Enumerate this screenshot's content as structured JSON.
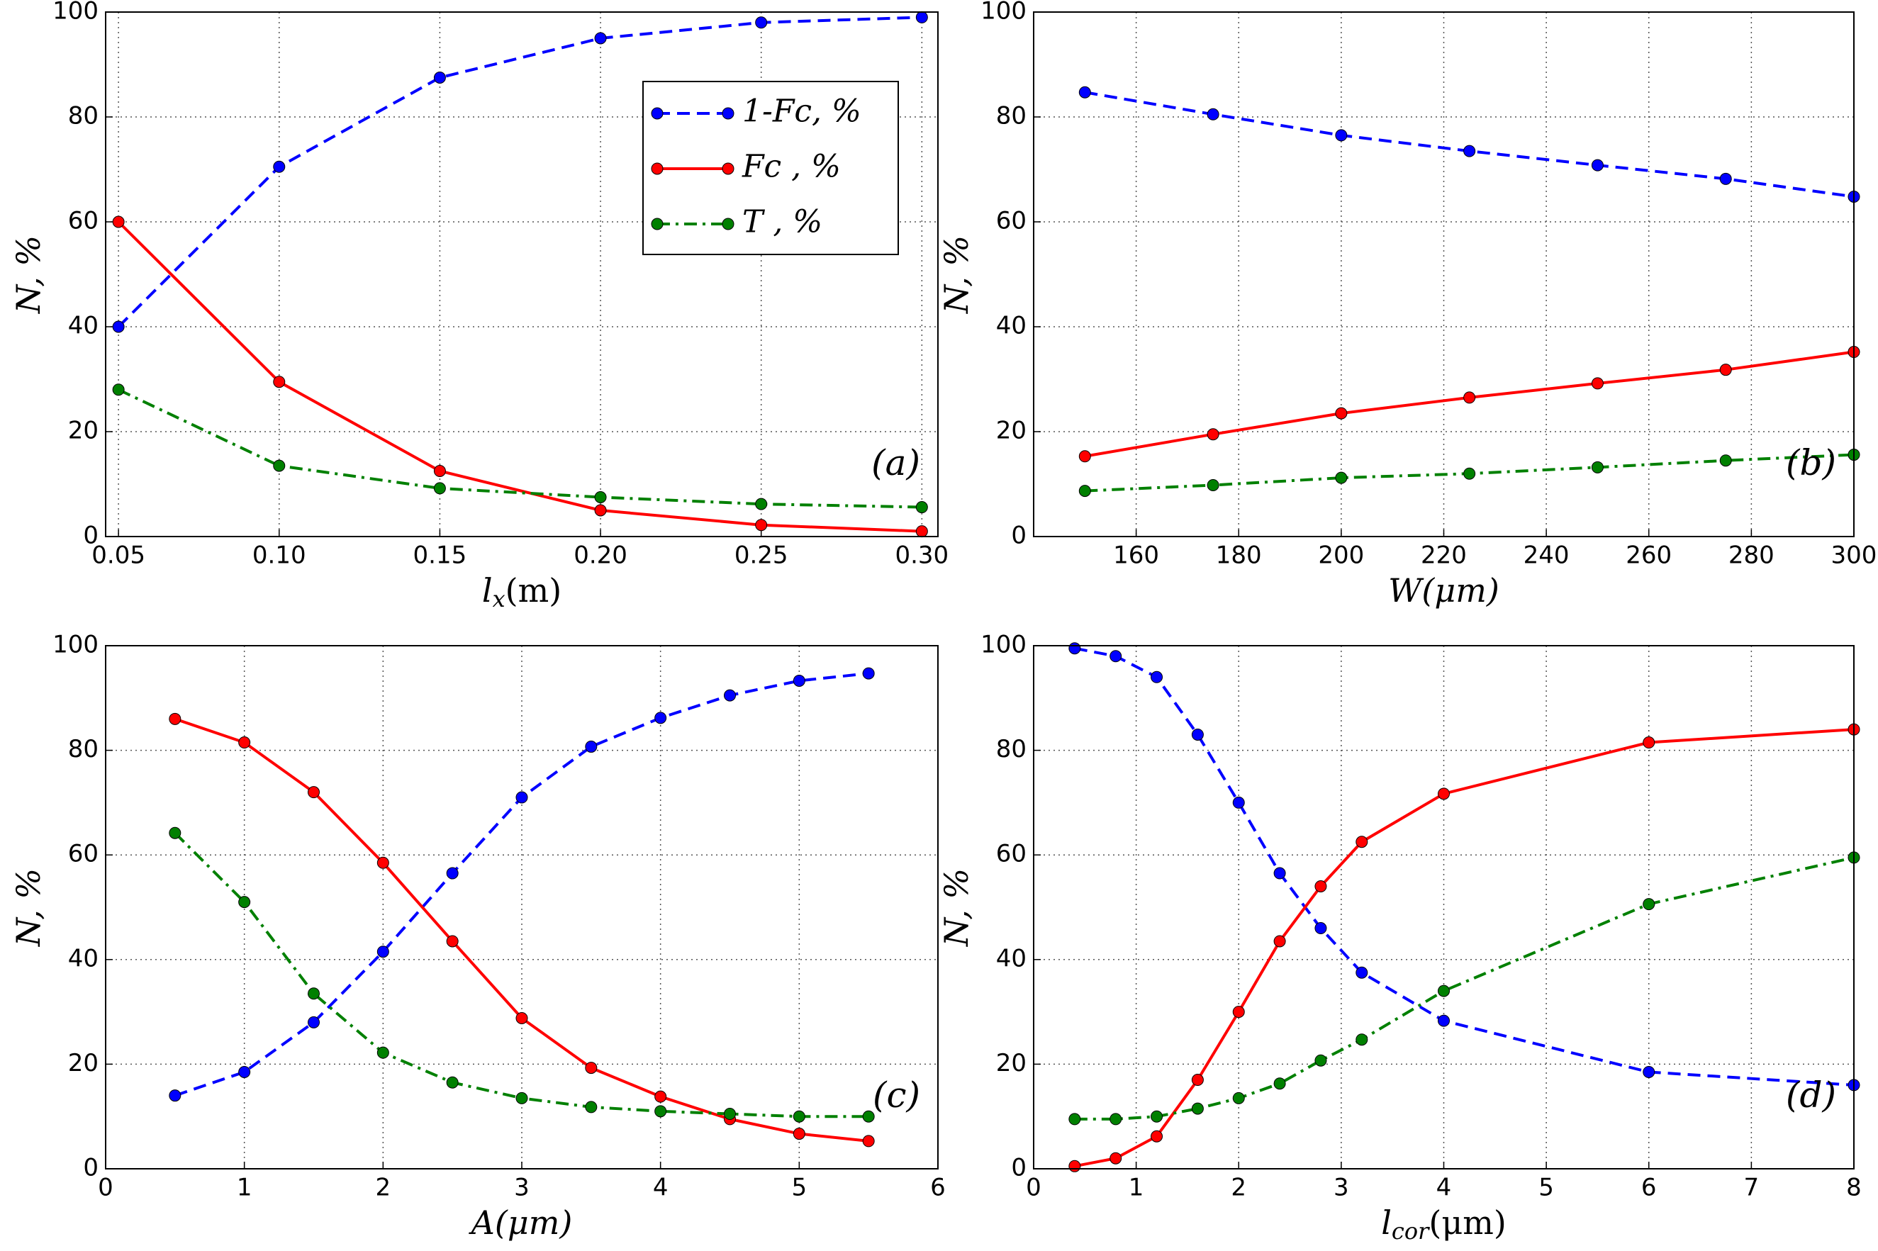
{
  "chart_data": [
    {
      "type": "line",
      "panel_label": "(a)",
      "ylabel": "N, %",
      "xlabel": {
        "base": "l",
        "sub": "x",
        "tail": "(m)"
      },
      "x": [
        0.05,
        0.1,
        0.15,
        0.2,
        0.25,
        0.3
      ],
      "xlim": [
        0.046,
        0.305
      ],
      "xticks": [
        {
          "value": 0.05,
          "label": "0.05"
        },
        {
          "value": 0.1,
          "label": "0.10"
        },
        {
          "value": 0.15,
          "label": "0.15"
        },
        {
          "value": 0.2,
          "label": "0.20"
        },
        {
          "value": 0.25,
          "label": "0.25"
        },
        {
          "value": 0.3,
          "label": "0.30"
        }
      ],
      "ylim": [
        0,
        100
      ],
      "yticks": [
        0,
        20,
        40,
        60,
        80,
        100
      ],
      "grid": true,
      "legend": "upper right",
      "series": [
        {
          "name": "1-Fc, %",
          "color": "#0000ff",
          "dash": "dashed",
          "values": [
            40,
            70.5,
            87.5,
            95,
            98,
            99
          ]
        },
        {
          "name": "Fc , %",
          "color": "#ff0000",
          "dash": "solid",
          "values": [
            60,
            29.5,
            12.5,
            5,
            2.2,
            1
          ]
        },
        {
          "name": "T , %",
          "color": "#008000",
          "dash": "dashdot",
          "values": [
            28,
            13.5,
            9.2,
            7.5,
            6.2,
            5.6
          ]
        }
      ]
    },
    {
      "type": "line",
      "panel_label": "(b)",
      "ylabel": "N, %",
      "xlabel": "W(μm)",
      "x": [
        150,
        175,
        200,
        225,
        250,
        275,
        300
      ],
      "xlim": [
        140,
        300
      ],
      "xticks": [
        160,
        180,
        200,
        220,
        240,
        260,
        280,
        300
      ],
      "ylim": [
        0,
        100
      ],
      "yticks": [
        0,
        20,
        40,
        60,
        80,
        100
      ],
      "grid": true,
      "series": [
        {
          "color": "#0000ff",
          "dash": "dashed",
          "values": [
            84.7,
            80.5,
            76.5,
            73.5,
            70.8,
            68.2,
            64.8
          ]
        },
        {
          "color": "#ff0000",
          "dash": "solid",
          "values": [
            15.3,
            19.5,
            23.5,
            26.5,
            29.2,
            31.8,
            35.2
          ]
        },
        {
          "color": "#008000",
          "dash": "dashdot",
          "values": [
            8.7,
            9.8,
            11.2,
            12,
            13.2,
            14.5,
            15.6
          ]
        }
      ]
    },
    {
      "type": "line",
      "panel_label": "(c)",
      "ylabel": "N, %",
      "xlabel": "A(μm)",
      "x": [
        0.5,
        1,
        1.5,
        2,
        2.5,
        3,
        3.5,
        4,
        4.5,
        5,
        5.5
      ],
      "xlim": [
        0,
        6
      ],
      "xticks": [
        0,
        1,
        2,
        3,
        4,
        5,
        6
      ],
      "ylim": [
        0,
        100
      ],
      "yticks": [
        0,
        20,
        40,
        60,
        80,
        100
      ],
      "grid": true,
      "series": [
        {
          "color": "#0000ff",
          "dash": "dashed",
          "values": [
            14,
            18.5,
            28,
            41.5,
            56.5,
            71,
            80.7,
            86.2,
            90.5,
            93.3,
            94.7
          ]
        },
        {
          "color": "#ff0000",
          "dash": "solid",
          "values": [
            86,
            81.5,
            72,
            58.5,
            43.5,
            28.8,
            19.3,
            13.8,
            9.5,
            6.7,
            5.3
          ]
        },
        {
          "color": "#008000",
          "dash": "dashdot",
          "values": [
            64.2,
            51,
            33.5,
            22.2,
            16.5,
            13.5,
            11.8,
            11,
            10.5,
            10,
            10
          ]
        }
      ]
    },
    {
      "type": "line",
      "panel_label": "(d)",
      "ylabel": "N, %",
      "xlabel": {
        "base": "l",
        "sub": "cor",
        "tail": "(μm)"
      },
      "x": [
        0.4,
        0.8,
        1.2,
        1.6,
        2,
        2.4,
        2.8,
        3.2,
        4,
        6,
        8
      ],
      "xlim": [
        0,
        8
      ],
      "xticks": [
        0,
        1,
        2,
        3,
        4,
        5,
        6,
        7,
        8
      ],
      "ylim": [
        0,
        100
      ],
      "yticks": [
        0,
        20,
        40,
        60,
        80,
        100
      ],
      "grid": true,
      "series": [
        {
          "color": "#0000ff",
          "dash": "dashed",
          "values": [
            99.5,
            98,
            94,
            83,
            70,
            56.5,
            46,
            37.5,
            28.3,
            18.5,
            16
          ]
        },
        {
          "color": "#ff0000",
          "dash": "solid",
          "values": [
            0.5,
            2,
            6.2,
            17,
            30,
            43.5,
            54,
            62.5,
            71.7,
            81.5,
            84
          ]
        },
        {
          "color": "#008000",
          "dash": "dashdot",
          "values": [
            9.5,
            9.5,
            10,
            11.5,
            13.5,
            16.3,
            20.7,
            24.7,
            34,
            50.6,
            59.5
          ]
        }
      ]
    }
  ]
}
